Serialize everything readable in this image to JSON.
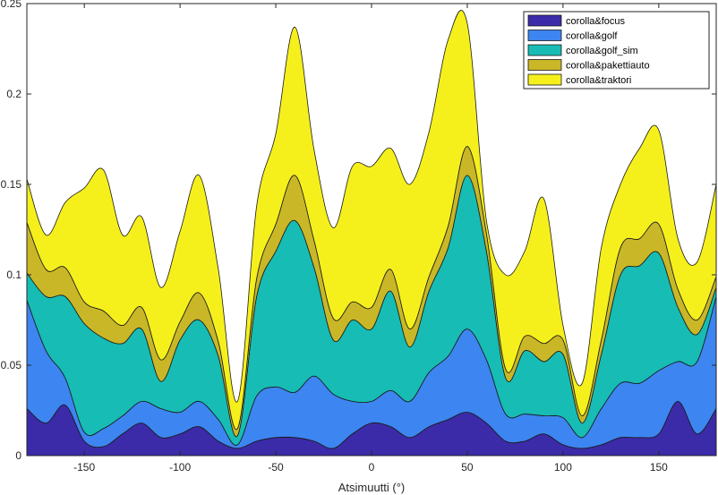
{
  "chart_data": {
    "type": "area",
    "stacked": true,
    "xlabel": "Atsimuutti (°)",
    "ylabel": "",
    "xlim": [
      -180,
      180
    ],
    "ylim": [
      0,
      0.25
    ],
    "xticks": [
      -150,
      -100,
      -50,
      0,
      50,
      100,
      150
    ],
    "yticks": [
      0,
      0.05,
      0.1,
      0.15,
      0.2,
      0.25
    ],
    "ytick_labels": [
      "0",
      "0.05",
      "0.1",
      "0.15",
      "0.2",
      "0.25"
    ],
    "grid": false,
    "legend_position": "top-right",
    "x": [
      -180,
      -170,
      -160,
      -150,
      -140,
      -130,
      -120,
      -110,
      -100,
      -90,
      -80,
      -70,
      -60,
      -50,
      -40,
      -30,
      -20,
      -10,
      0,
      10,
      20,
      30,
      40,
      50,
      60,
      70,
      80,
      90,
      100,
      110,
      120,
      130,
      140,
      150,
      160,
      170,
      180
    ],
    "series": [
      {
        "name": "corolla&focus",
        "color": "#3b2ba8",
        "values": [
          0.026,
          0.018,
          0.028,
          0.008,
          0.005,
          0.012,
          0.018,
          0.01,
          0.012,
          0.016,
          0.008,
          0.004,
          0.008,
          0.01,
          0.01,
          0.008,
          0.004,
          0.012,
          0.018,
          0.016,
          0.01,
          0.016,
          0.02,
          0.024,
          0.018,
          0.008,
          0.008,
          0.012,
          0.006,
          0.004,
          0.006,
          0.01,
          0.01,
          0.012,
          0.03,
          0.012,
          0.026
        ]
      },
      {
        "name": "corolla&golf",
        "color": "#3d85f0",
        "values": [
          0.06,
          0.04,
          0.015,
          0.005,
          0.01,
          0.01,
          0.012,
          0.016,
          0.012,
          0.014,
          0.012,
          0.002,
          0.025,
          0.028,
          0.025,
          0.036,
          0.03,
          0.018,
          0.012,
          0.02,
          0.02,
          0.03,
          0.035,
          0.046,
          0.035,
          0.015,
          0.015,
          0.01,
          0.015,
          0.006,
          0.02,
          0.03,
          0.03,
          0.035,
          0.022,
          0.04,
          0.062
        ]
      },
      {
        "name": "corolla&golf_sim",
        "color": "#17bcb4",
        "values": [
          0.015,
          0.03,
          0.045,
          0.06,
          0.05,
          0.04,
          0.04,
          0.015,
          0.04,
          0.045,
          0.035,
          0.005,
          0.055,
          0.075,
          0.095,
          0.06,
          0.03,
          0.045,
          0.04,
          0.055,
          0.03,
          0.045,
          0.06,
          0.085,
          0.06,
          0.02,
          0.035,
          0.03,
          0.035,
          0.008,
          0.03,
          0.06,
          0.065,
          0.065,
          0.03,
          0.015,
          0.005
        ]
      },
      {
        "name": "corolla&pakettiauto",
        "color": "#c9b728",
        "values": [
          0.028,
          0.015,
          0.016,
          0.012,
          0.015,
          0.01,
          0.012,
          0.012,
          0.01,
          0.015,
          0.008,
          0.004,
          0.01,
          0.015,
          0.025,
          0.015,
          0.012,
          0.01,
          0.012,
          0.012,
          0.01,
          0.008,
          0.012,
          0.016,
          0.01,
          0.005,
          0.008,
          0.01,
          0.008,
          0.004,
          0.008,
          0.015,
          0.015,
          0.016,
          0.01,
          0.008,
          0.006
        ]
      },
      {
        "name": "corolla&traktori",
        "color": "#f5f01c",
        "values": [
          0.024,
          0.019,
          0.036,
          0.063,
          0.078,
          0.05,
          0.05,
          0.04,
          0.05,
          0.065,
          0.04,
          0.015,
          0.04,
          0.05,
          0.082,
          0.05,
          0.05,
          0.075,
          0.078,
          0.067,
          0.08,
          0.08,
          0.103,
          0.068,
          0.007,
          0.052,
          0.047,
          0.08,
          0.008,
          0.018,
          0.051,
          0.035,
          0.05,
          0.052,
          0.028,
          0.032,
          0.051
        ]
      }
    ]
  }
}
